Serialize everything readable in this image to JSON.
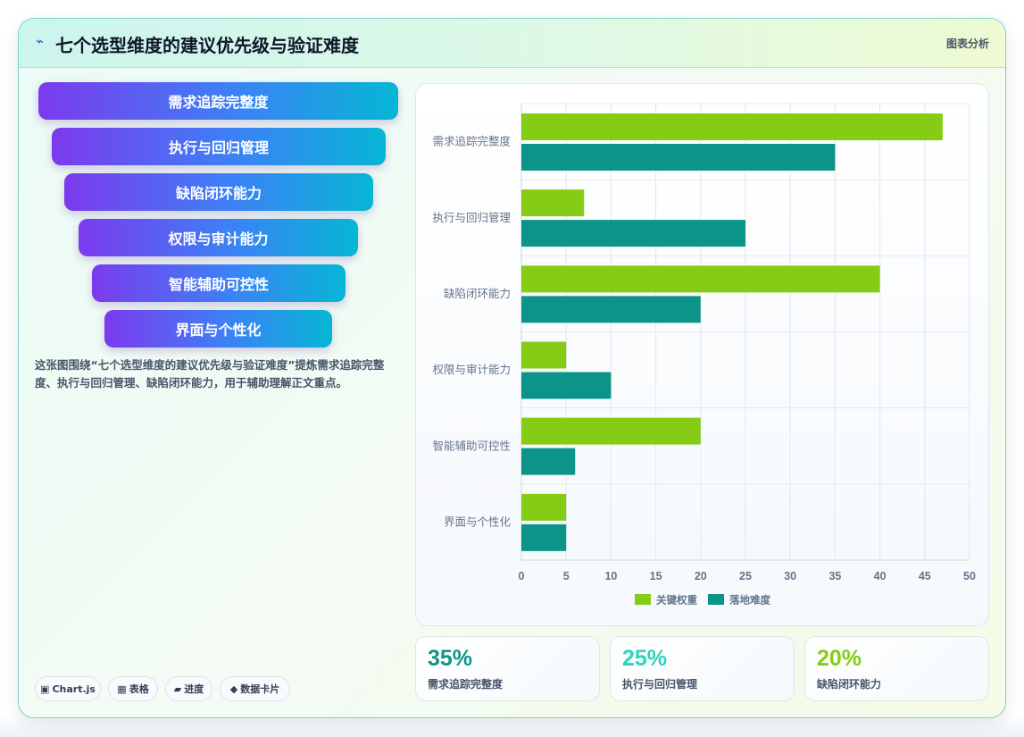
{
  "header": {
    "icon": "⌁",
    "title": "七个选型维度的建议优先级与验证难度",
    "tag": "图表分析"
  },
  "funnel": [
    "需求追踪完整度",
    "执行与回归管理",
    "缺陷闭环能力",
    "权限与审计能力",
    "智能辅助可控性",
    "界面与个性化"
  ],
  "description": "这张图围绕“七个选型维度的建议优先级与验证难度”提炼需求追踪完整度、执行与回归管理、缺陷闭环能力，用于辅助理解正文重点。",
  "chips": [
    {
      "icon": "▣",
      "label": "Chart.js"
    },
    {
      "icon": "▦",
      "label": "表格"
    },
    {
      "icon": "▰",
      "label": "进度"
    },
    {
      "icon": "◆",
      "label": "数据卡片"
    }
  ],
  "chart_data": {
    "type": "bar",
    "orientation": "horizontal",
    "categories": [
      "需求追踪完整度",
      "执行与回归管理",
      "缺陷闭环能力",
      "权限与审计能力",
      "智能辅助可控性",
      "界面与个性化"
    ],
    "series": [
      {
        "name": "关键权重",
        "color": "#84cc16",
        "values": [
          47,
          7,
          40,
          5,
          20,
          5
        ]
      },
      {
        "name": "落地难度",
        "color": "#0d9488",
        "values": [
          35,
          25,
          20,
          10,
          6,
          5
        ]
      }
    ],
    "xlim": [
      0,
      50
    ],
    "xticks": [
      0,
      5,
      10,
      15,
      20,
      25,
      30,
      35,
      40,
      45,
      50
    ],
    "grid": true,
    "legend": "bottom"
  },
  "stats": [
    {
      "value": "35%",
      "label": "需求追踪完整度",
      "color": "#0d9488"
    },
    {
      "value": "25%",
      "label": "执行与回归管理",
      "color": "#2dd4bf"
    },
    {
      "value": "20%",
      "label": "缺陷闭环能力",
      "color": "#84cc16"
    }
  ]
}
